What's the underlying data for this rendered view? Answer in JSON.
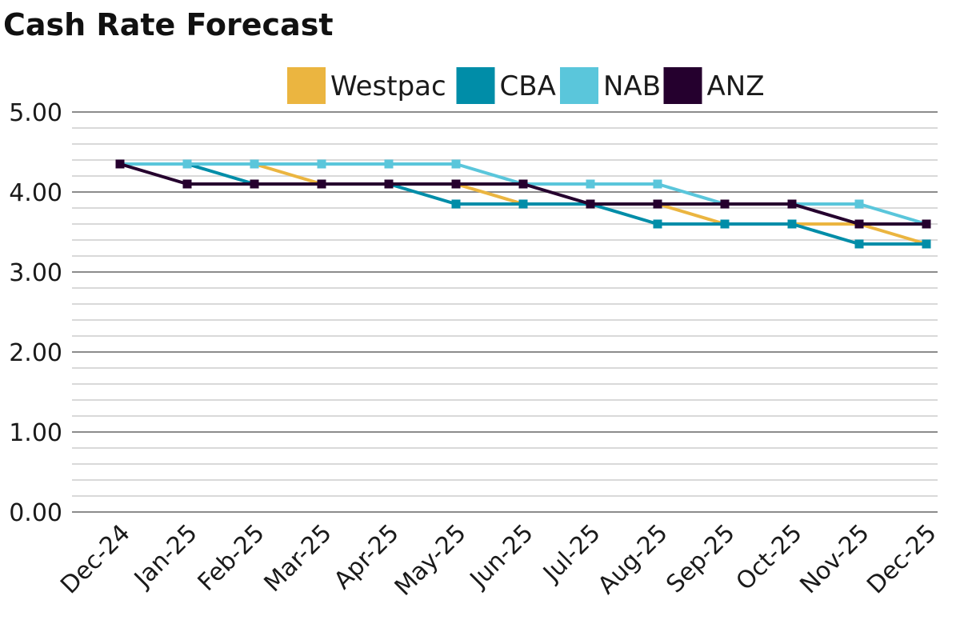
{
  "chart_data": {
    "type": "line",
    "title": "Cash Rate Forecast",
    "xlabel": "",
    "ylabel": "",
    "categories": [
      "Dec-24",
      "Jan-25",
      "Feb-25",
      "Mar-25",
      "Apr-25",
      "May-25",
      "Jun-25",
      "Jul-25",
      "Aug-25",
      "Sep-25",
      "Oct-25",
      "Nov-25",
      "Dec-25"
    ],
    "ylim": [
      0,
      5
    ],
    "yticks": [
      "0.00",
      "1.00",
      "2.00",
      "3.00",
      "4.00",
      "5.00"
    ],
    "y_minor_step": 0.2,
    "grid": true,
    "legend_position": "top",
    "series": [
      {
        "name": "Westpac",
        "color": "#EBB540",
        "values": [
          4.35,
          4.35,
          4.35,
          4.1,
          4.1,
          4.1,
          3.85,
          3.85,
          3.85,
          3.6,
          3.6,
          3.6,
          3.35
        ]
      },
      {
        "name": "CBA",
        "color": "#008DA8",
        "values": [
          4.35,
          4.35,
          4.1,
          4.1,
          4.1,
          3.85,
          3.85,
          3.85,
          3.6,
          3.6,
          3.6,
          3.35,
          3.35
        ]
      },
      {
        "name": "NAB",
        "color": "#5AC6DB",
        "values": [
          4.35,
          4.35,
          4.35,
          4.35,
          4.35,
          4.35,
          4.1,
          4.1,
          4.1,
          3.85,
          3.85,
          3.85,
          3.6
        ]
      },
      {
        "name": "ANZ",
        "color": "#25002E",
        "values": [
          4.35,
          4.1,
          4.1,
          4.1,
          4.1,
          4.1,
          4.1,
          3.85,
          3.85,
          3.85,
          3.85,
          3.6,
          3.6
        ]
      }
    ]
  }
}
